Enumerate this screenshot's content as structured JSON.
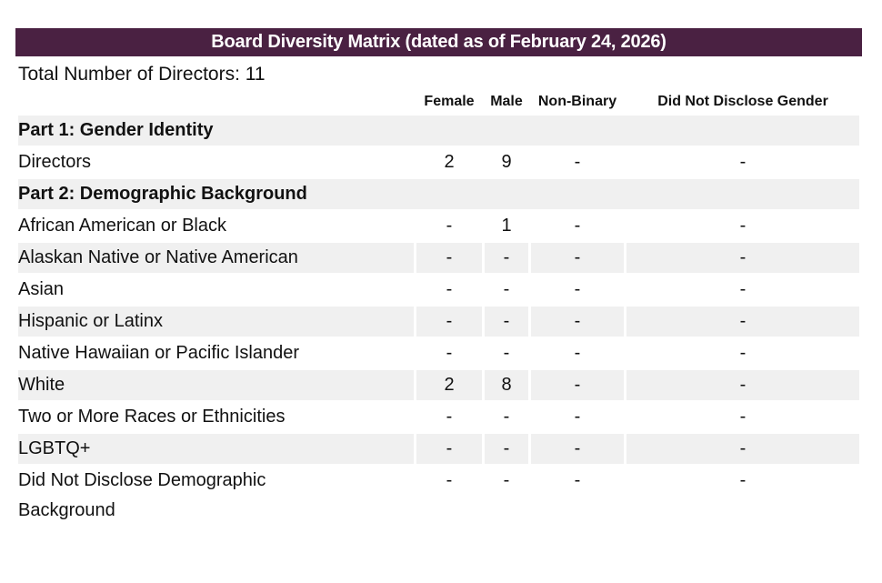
{
  "header": {
    "title": "Board Diversity Matrix (dated as of February 24, 2026)"
  },
  "summary": {
    "total_directors_line": "Total Number of Directors: 11"
  },
  "table": {
    "row_label_header": "",
    "columns": [
      "Female",
      "Male",
      "Non-Binary",
      "Did Not Disclose Gender"
    ],
    "rows": [
      {
        "type": "section",
        "label": "Part 1: Gender Identity"
      },
      {
        "type": "data",
        "label": "Directors",
        "values": [
          "2",
          "9",
          "-",
          "-"
        ]
      },
      {
        "type": "section",
        "label": "Part 2: Demographic Background"
      },
      {
        "type": "data",
        "label": "African American or Black",
        "values": [
          "-",
          "1",
          "-",
          "-"
        ]
      },
      {
        "type": "data",
        "label": "Alaskan Native or Native American",
        "values": [
          "-",
          "-",
          "-",
          "-"
        ]
      },
      {
        "type": "data",
        "label": "Asian",
        "values": [
          "-",
          "-",
          "-",
          "-"
        ]
      },
      {
        "type": "data",
        "label": "Hispanic or Latinx",
        "values": [
          "-",
          "-",
          "-",
          "-"
        ]
      },
      {
        "type": "data",
        "label": "Native Hawaiian or Pacific Islander",
        "values": [
          "-",
          "-",
          "-",
          "-"
        ]
      },
      {
        "type": "data",
        "label": "White",
        "values": [
          "2",
          "8",
          "-",
          "-"
        ]
      },
      {
        "type": "data",
        "label": "Two or More Races or Ethnicities",
        "values": [
          "-",
          "-",
          "-",
          "-"
        ]
      },
      {
        "type": "data",
        "label": "LGBTQ+",
        "values": [
          "-",
          "-",
          "-",
          "-"
        ]
      },
      {
        "type": "data",
        "label": "Did Not Disclose Demographic Background",
        "values": [
          "-",
          "-",
          "-",
          "-"
        ]
      }
    ]
  },
  "colors": {
    "title_bar_bg": "#4a2142",
    "title_text": "#ffffff",
    "stripe_row_bg": "#f0f0f0",
    "body_text": "#111111"
  }
}
